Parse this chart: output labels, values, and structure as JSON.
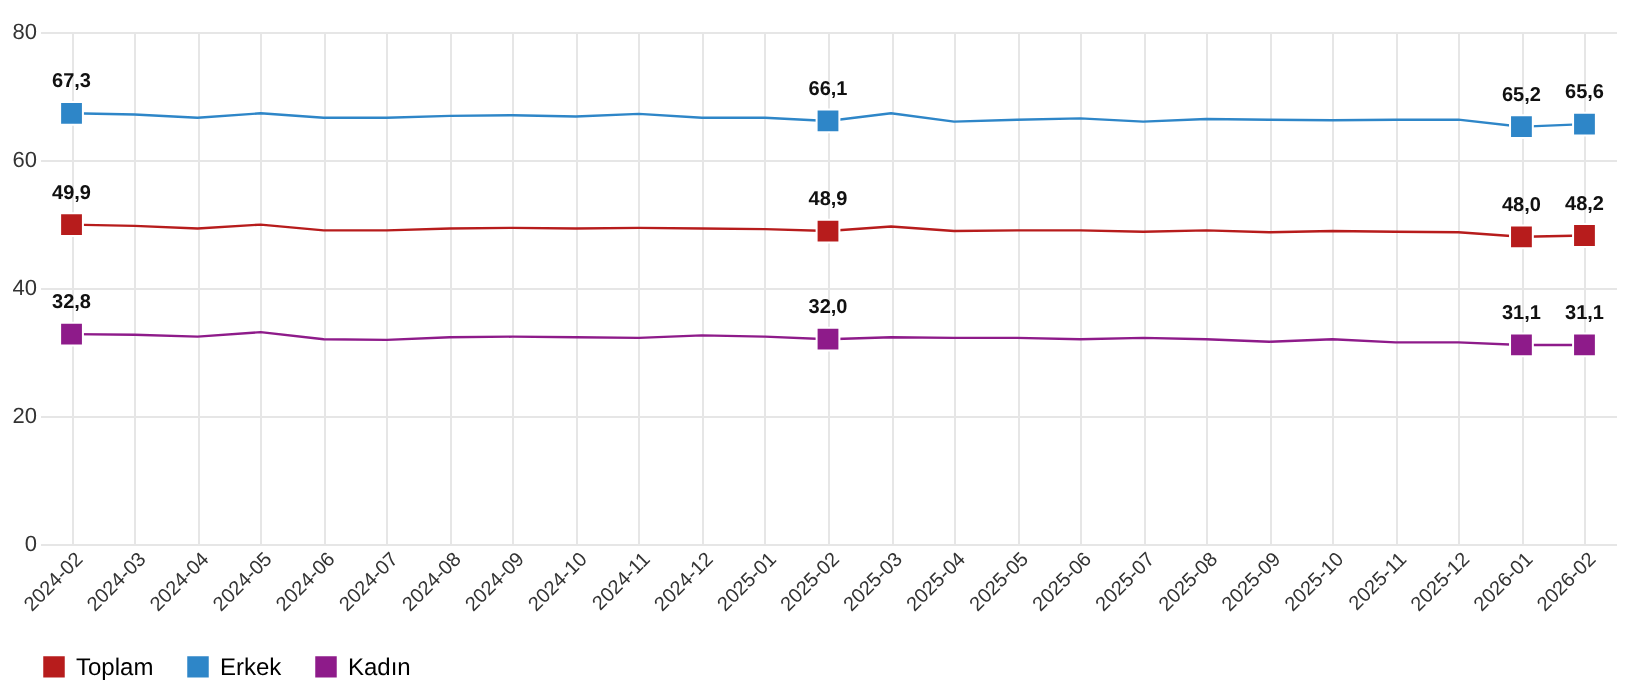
{
  "chart_data": {
    "type": "line",
    "categories": [
      "2024-02",
      "2024-03",
      "2024-04",
      "2024-05",
      "2024-06",
      "2024-07",
      "2024-08",
      "2024-09",
      "2024-10",
      "2024-11",
      "2024-12",
      "2025-01",
      "2025-02",
      "2025-03",
      "2025-04",
      "2025-05",
      "2025-06",
      "2025-07",
      "2025-08",
      "2025-09",
      "2025-10",
      "2025-11",
      "2025-12",
      "2026-01",
      "2026-02"
    ],
    "series": [
      {
        "name": "Toplam",
        "color": "#b71c1c",
        "values": [
          49.9,
          49.7,
          49.3,
          49.9,
          49.0,
          49.0,
          49.3,
          49.4,
          49.3,
          49.4,
          49.3,
          49.2,
          48.9,
          49.6,
          48.9,
          49.0,
          49.0,
          48.8,
          49.0,
          48.7,
          48.9,
          48.8,
          48.7,
          48.0,
          48.2
        ],
        "value_labels": [
          "49,9",
          null,
          null,
          null,
          null,
          null,
          null,
          null,
          null,
          null,
          null,
          null,
          "48,9",
          null,
          null,
          null,
          null,
          null,
          null,
          null,
          null,
          null,
          null,
          "48,0",
          "48,2"
        ]
      },
      {
        "name": "Erkek",
        "color": "#2e86c8",
        "values": [
          67.3,
          67.1,
          66.6,
          67.3,
          66.6,
          66.6,
          66.9,
          67.0,
          66.8,
          67.2,
          66.6,
          66.6,
          66.1,
          67.3,
          66.0,
          66.3,
          66.5,
          66.0,
          66.4,
          66.3,
          66.2,
          66.3,
          66.3,
          65.2,
          65.6
        ],
        "value_labels": [
          "67,3",
          null,
          null,
          null,
          null,
          null,
          null,
          null,
          null,
          null,
          null,
          null,
          "66,1",
          null,
          null,
          null,
          null,
          null,
          null,
          null,
          null,
          null,
          null,
          "65,2",
          "65,6"
        ]
      },
      {
        "name": "Kadın",
        "color": "#8e1b8a",
        "values": [
          32.8,
          32.7,
          32.4,
          33.1,
          32.0,
          31.9,
          32.3,
          32.4,
          32.3,
          32.2,
          32.6,
          32.4,
          32.0,
          32.3,
          32.2,
          32.2,
          32.0,
          32.2,
          32.0,
          31.6,
          32.0,
          31.5,
          31.5,
          31.1,
          31.1
        ],
        "value_labels": [
          "32,8",
          null,
          null,
          null,
          null,
          null,
          null,
          null,
          null,
          null,
          null,
          null,
          "32,0",
          null,
          null,
          null,
          null,
          null,
          null,
          null,
          null,
          null,
          null,
          "31,1",
          "31,1"
        ]
      }
    ],
    "ylim": [
      0,
      80
    ],
    "yticks": [
      0,
      20,
      40,
      60,
      80
    ],
    "grid": true,
    "legend": "bottom",
    "line_style": "solid"
  }
}
